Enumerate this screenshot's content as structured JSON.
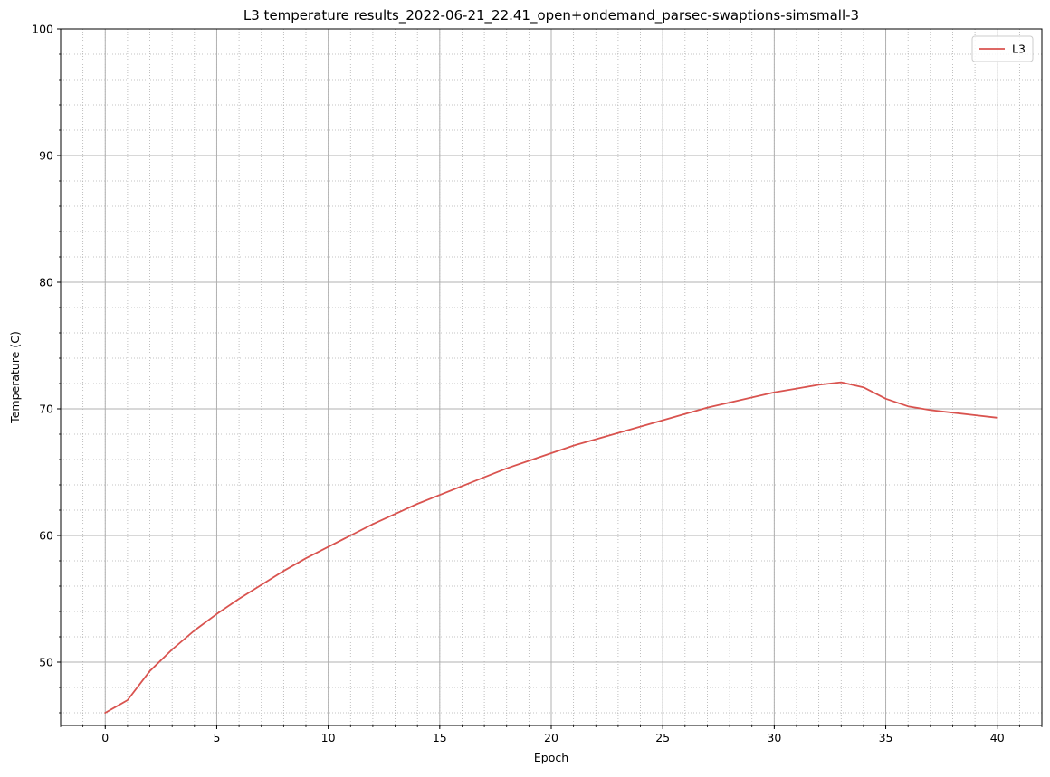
{
  "chart_data": {
    "type": "line",
    "title": "L3 temperature results_2022-06-21_22.41_open+ondemand_parsec-swaptions-simsmall-3",
    "xlabel": "Epoch",
    "ylabel": "Temperature (C)",
    "xlim": [
      -2,
      42
    ],
    "ylim": [
      45,
      100
    ],
    "xticks": [
      0,
      5,
      10,
      15,
      20,
      25,
      30,
      35,
      40
    ],
    "yticks": [
      50,
      60,
      70,
      80,
      90,
      100
    ],
    "x_minor_step": 1,
    "y_minor_step": 2,
    "grid": true,
    "grid_minor": true,
    "legend_position": "top-right",
    "series": [
      {
        "name": "L3",
        "color": "#d9534f",
        "x": [
          0,
          1,
          2,
          3,
          4,
          5,
          6,
          7,
          8,
          9,
          10,
          11,
          12,
          13,
          14,
          15,
          16,
          17,
          18,
          19,
          20,
          21,
          22,
          23,
          24,
          25,
          26,
          27,
          28,
          29,
          30,
          31,
          32,
          33,
          34,
          35,
          36,
          37,
          38,
          39,
          40
        ],
        "y": [
          46.0,
          47.0,
          49.3,
          51.0,
          52.5,
          53.8,
          55.0,
          56.1,
          57.2,
          58.2,
          59.1,
          60.0,
          60.9,
          61.7,
          62.5,
          63.2,
          63.9,
          64.6,
          65.3,
          65.9,
          66.5,
          67.1,
          67.6,
          68.1,
          68.6,
          69.1,
          69.6,
          70.1,
          70.5,
          70.9,
          71.3,
          71.6,
          71.9,
          72.1,
          71.7,
          70.8,
          70.2,
          69.9,
          69.7,
          69.5,
          69.3
        ]
      }
    ]
  }
}
